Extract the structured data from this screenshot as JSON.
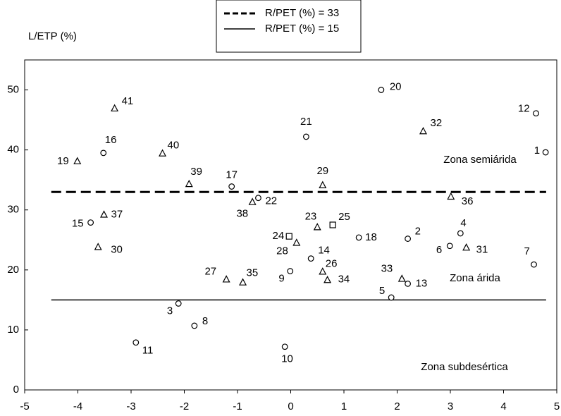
{
  "chart_data": {
    "type": "scatter",
    "y_label": "L/ETP (%)",
    "xlim": [
      -5,
      5
    ],
    "ylim": [
      0,
      55
    ],
    "xticks": [
      -5,
      -4,
      -3,
      -2,
      -1,
      0,
      1,
      2,
      3,
      4,
      5
    ],
    "yticks": [
      0,
      10,
      20,
      30,
      40,
      50
    ],
    "series": [
      {
        "marker": "circle",
        "point_labels": [
          "20",
          "12",
          "1",
          "21",
          "16",
          "17",
          "22",
          "15",
          "18",
          "2",
          "4",
          "6",
          "7",
          "14",
          "9",
          "13",
          "5",
          "3",
          "8",
          "11",
          "10"
        ],
        "x": [
          1.7,
          4.61,
          4.79,
          0.29,
          -3.52,
          -1.11,
          -0.61,
          -3.76,
          1.28,
          2.2,
          3.19,
          2.99,
          4.57,
          0.38,
          -0.01,
          2.2,
          1.89,
          -2.11,
          -1.81,
          -2.91,
          -0.11
        ],
        "values": [
          50.0,
          46.1,
          39.6,
          42.2,
          39.5,
          33.9,
          32.0,
          27.9,
          25.4,
          25.2,
          26.1,
          24.0,
          20.9,
          21.9,
          19.8,
          17.7,
          15.4,
          14.4,
          10.7,
          7.9,
          7.2
        ]
      },
      {
        "marker": "triangle",
        "point_labels": [
          "41",
          "40",
          "19",
          "39",
          "29",
          "32",
          "36",
          "37",
          "38",
          "23",
          "30",
          "31",
          "28",
          "27",
          "35",
          "26",
          "34",
          "33"
        ],
        "x": [
          -3.31,
          -2.41,
          -4.01,
          -1.91,
          0.6,
          2.49,
          3.01,
          -3.51,
          -0.72,
          0.5,
          -3.62,
          3.3,
          0.11,
          -1.21,
          -0.9,
          0.6,
          0.69,
          2.09
        ],
        "values": [
          46.9,
          39.4,
          38.1,
          34.3,
          34.1,
          43.1,
          32.2,
          29.2,
          31.3,
          27.1,
          23.8,
          23.7,
          24.5,
          18.4,
          17.9,
          19.7,
          18.3,
          18.5
        ]
      },
      {
        "marker": "square",
        "point_labels": [
          "24",
          "25"
        ],
        "x": [
          -0.03,
          0.79
        ],
        "values": [
          25.6,
          27.5
        ]
      }
    ],
    "reference_lines": [
      {
        "name": "R/PET (%) = 33",
        "y": 33,
        "x": [
          -4.5,
          4.8
        ],
        "style": "dashed"
      },
      {
        "name": "R/PET (%) = 15",
        "y": 15,
        "x": [
          -4.5,
          4.8
        ],
        "style": "solid"
      }
    ],
    "annotations": [
      "Zona semiárida",
      "Zona árida",
      "Zona subdesértica"
    ]
  }
}
